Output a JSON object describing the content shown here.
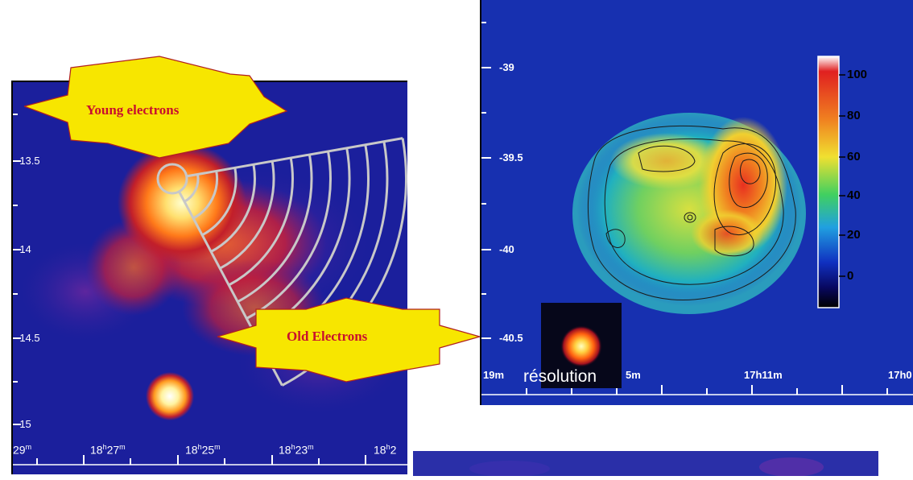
{
  "left_panel": {
    "dec_ticks": [
      "-13.5",
      "-14",
      "-14.5",
      "-15"
    ],
    "ra_ticks": [
      {
        "h": "",
        "m": "29",
        "sup_m": "m"
      },
      {
        "h": "18",
        "m": "27",
        "sup_h": "h",
        "sup_m": "m"
      },
      {
        "h": "18",
        "m": "25",
        "sup_h": "h",
        "sup_m": "m"
      },
      {
        "h": "18",
        "m": "23",
        "sup_h": "h",
        "sup_m": "m"
      },
      {
        "h": "18",
        "m": "2",
        "sup_h": "h",
        "sup_m": ""
      }
    ]
  },
  "right_panel": {
    "dec_ticks": [
      "-39",
      "-39.5",
      "-40",
      "-40.5"
    ],
    "ra_ticks": [
      "19m",
      "5m",
      "17h11m",
      "17h0"
    ],
    "colorbar_labels": [
      "100",
      "80",
      "60",
      "40",
      "20",
      "0"
    ],
    "resolution_label": "résolution"
  },
  "callouts": {
    "young": "Young electrons",
    "old": "Old Electrons"
  },
  "colors": {
    "callout_fill": "#f7e600",
    "callout_border": "#b02020",
    "callout_text": "#c8102e"
  }
}
